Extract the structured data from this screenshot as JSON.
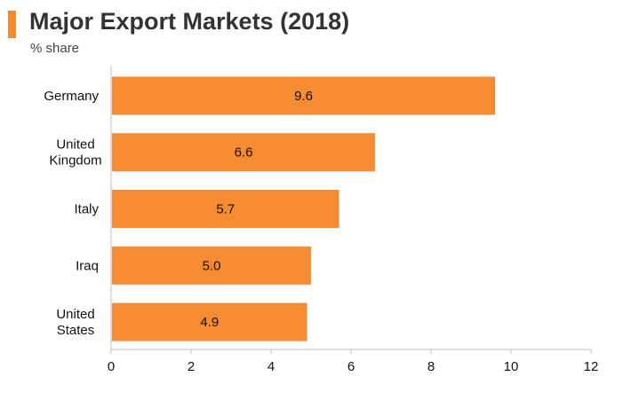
{
  "header": {
    "title": "Major Export Markets (2018)",
    "subtitle": "% share",
    "accent_color": "#f58b32"
  },
  "chart_data": {
    "type": "bar",
    "orientation": "horizontal",
    "title": "Major Export Markets (2018)",
    "subtitle": "% share",
    "categories": [
      [
        "Germany"
      ],
      [
        "United",
        "Kingdom"
      ],
      [
        "Italy"
      ],
      [
        "Iraq"
      ],
      [
        "United",
        "States"
      ]
    ],
    "values": [
      9.6,
      6.6,
      5.7,
      5.0,
      4.9
    ],
    "value_labels": [
      "9.6",
      "6.6",
      "5.7",
      "5.0",
      "4.9"
    ],
    "xlim": [
      0,
      12
    ],
    "xticks": [
      0,
      2,
      4,
      6,
      8,
      10,
      12
    ],
    "grid": false,
    "bar_color": "#f58b32",
    "axis_color": "#bfbfbf"
  }
}
